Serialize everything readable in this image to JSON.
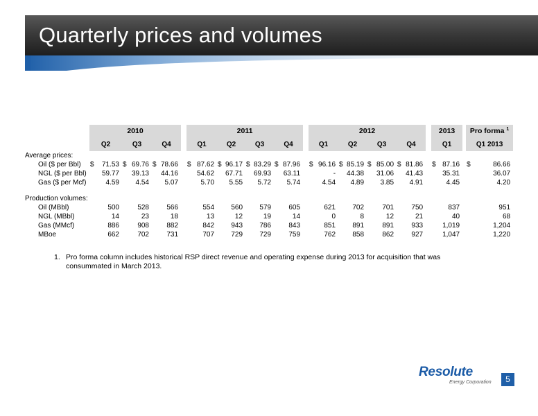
{
  "title": "Quarterly prices and volumes",
  "table": {
    "years": [
      "2010",
      "2011",
      "2012",
      "2013",
      "Pro forma"
    ],
    "proforma_sup": "1",
    "quarters": [
      "Q2",
      "Q3",
      "Q4",
      "Q1",
      "Q2",
      "Q3",
      "Q4",
      "Q1",
      "Q2",
      "Q3",
      "Q4",
      "Q1",
      "Q1 2013"
    ],
    "currency": "$",
    "section_prices": "Average prices:",
    "section_volumes": "Production volumes:",
    "prices": [
      {
        "label": "Oil ($ per Bbl)",
        "values": [
          "71.53",
          "69.76",
          "78.66",
          "87.62",
          "96.17",
          "83.29",
          "87.96",
          "96.16",
          "85.19",
          "85.00",
          "81.86",
          "87.16",
          "86.66"
        ]
      },
      {
        "label": "NGL ($ per Bbl)",
        "values": [
          "59.77",
          "39.13",
          "44.16",
          "54.62",
          "67.71",
          "69.93",
          "63.11",
          "-",
          "44.38",
          "31.06",
          "41.43",
          "35.31",
          "36.07"
        ]
      },
      {
        "label": "Gas ($ per Mcf)",
        "values": [
          "4.59",
          "4.54",
          "5.07",
          "5.70",
          "5.55",
          "5.72",
          "5.74",
          "4.54",
          "4.89",
          "3.85",
          "4.91",
          "4.45",
          "4.20"
        ]
      }
    ],
    "volumes": [
      {
        "label": "Oil (MBbl)",
        "values": [
          "500",
          "528",
          "566",
          "554",
          "560",
          "579",
          "605",
          "621",
          "702",
          "701",
          "750",
          "837",
          "951"
        ]
      },
      {
        "label": "NGL (MBbl)",
        "values": [
          "14",
          "23",
          "18",
          "13",
          "12",
          "19",
          "14",
          "0",
          "8",
          "12",
          "21",
          "40",
          "68"
        ]
      },
      {
        "label": "Gas (MMcf)",
        "values": [
          "886",
          "908",
          "882",
          "842",
          "943",
          "786",
          "843",
          "851",
          "891",
          "891",
          "933",
          "1,019",
          "1,204"
        ]
      },
      {
        "label": "MBoe",
        "values": [
          "662",
          "702",
          "731",
          "707",
          "729",
          "729",
          "759",
          "762",
          "858",
          "862",
          "927",
          "1,047",
          "1,220"
        ]
      }
    ]
  },
  "footnote": {
    "number": "1.",
    "text": "Pro forma column includes historical RSP direct revenue and operating expense during 2013 for acquisition that was consummated in March 2013."
  },
  "logo": {
    "brand": "Resolute",
    "sub": "Energy Corporation"
  },
  "page_number": "5",
  "colors": {
    "title_bar": "#2e2e2e",
    "accent_blue": "#1f5fa8",
    "header_shade": "#d9d9d9"
  }
}
